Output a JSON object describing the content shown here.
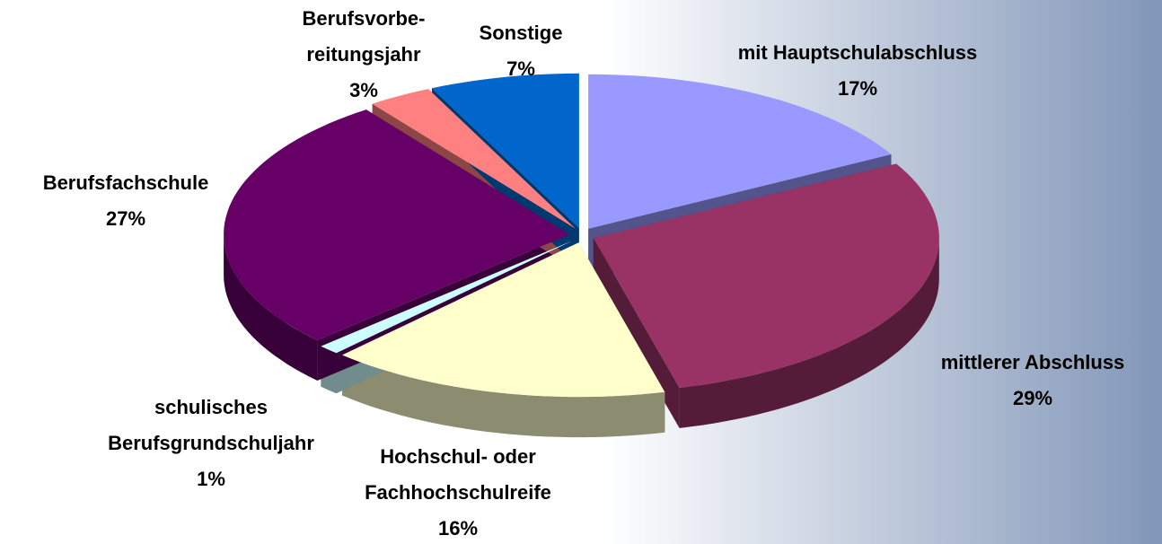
{
  "chart_data": {
    "type": "pie",
    "categories": [
      "mit Hauptschulabschluss",
      "mittlerer Abschluss",
      "Hochschul- oder\nFachhochschulreife",
      "schulisches\nBerufsgrundschuljahr",
      "Berufsfachschule",
      "Berufsvorbe-\nreitungsjahr",
      "Sonstige"
    ],
    "values": [
      17,
      29,
      16,
      1,
      27,
      3,
      7
    ],
    "value_labels": [
      "17%",
      "29%",
      "16%",
      "1%",
      "27%",
      "3%",
      "7%"
    ],
    "colors": [
      "#9999ff",
      "#993366",
      "#ffffcc",
      "#ccffff",
      "#660066",
      "#ff8080",
      "#0066cc"
    ]
  }
}
